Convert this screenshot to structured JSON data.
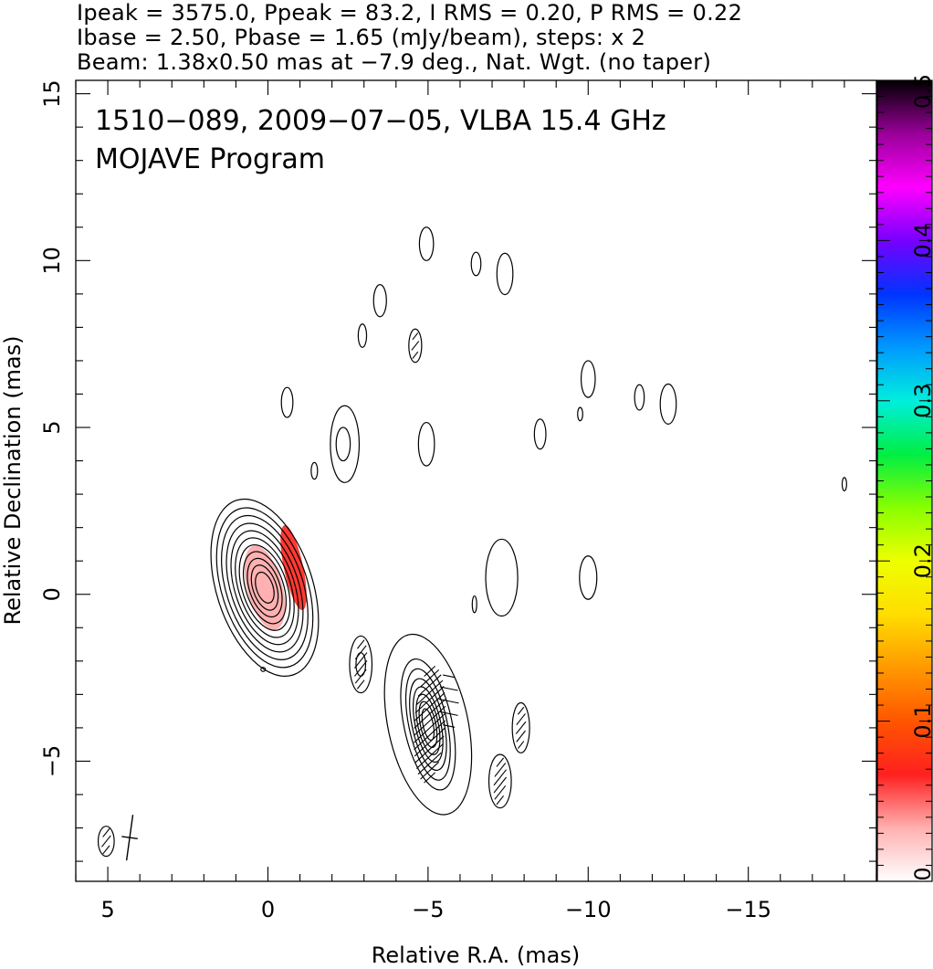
{
  "header": {
    "line1": "Ipeak = 3575.0, Ppeak = 83.2, I RMS = 0.20, P RMS = 0.22",
    "line2": "Ibase = 2.50, Pbase = 1.65 (mJy/beam), steps: x 2",
    "line3": "Beam: 1.38x0.50 mas at −7.9 deg., Nat. Wgt. (no taper)"
  },
  "chart_data": {
    "type": "contour",
    "title": "1510−089, 2009−07−05, VLBA 15.4 GHz",
    "subtitle": "MOJAVE Program",
    "xlabel": "Relative R.A. (mas)",
    "ylabel": "Relative Declination (mas)",
    "xlim": [
      6.0,
      -19.0
    ],
    "ylim": [
      -8.6,
      15.4
    ],
    "x_ticks": [
      5,
      0,
      -5,
      -10,
      -15
    ],
    "x_tick_labels": [
      "5",
      "0",
      "−5",
      "−10",
      "−15"
    ],
    "y_ticks": [
      -5,
      0,
      5,
      10,
      15
    ],
    "y_tick_labels": [
      "−5",
      "0",
      "5",
      "10",
      "15"
    ],
    "colorbar": {
      "range": [
        0,
        0.5
      ],
      "ticks": [
        0,
        0.1,
        0.2,
        0.3,
        0.4,
        0.5
      ],
      "tick_labels": [
        "0",
        "0.1",
        "0.2",
        "0.3",
        "0.4",
        "0.5"
      ],
      "colormap": "rainbow",
      "stops": [
        "#ffffff",
        "#ffb0b0",
        "#ff2020",
        "#ff5500",
        "#ff9900",
        "#ffdd00",
        "#eeff00",
        "#88ff00",
        "#00ee44",
        "#00eedd",
        "#0099ff",
        "#0033ff",
        "#7700ff",
        "#ff00ff",
        "#990099",
        "#000000"
      ]
    },
    "beam": {
      "major": 1.38,
      "minor": 0.5,
      "pa_deg": -7.9,
      "center": [
        5.0,
        -7.4
      ]
    },
    "core": {
      "center": [
        0.1,
        0.2
      ],
      "pa_deg": -18,
      "contours": [
        [
          1.5,
          2.75
        ],
        [
          1.34,
          2.48
        ],
        [
          1.2,
          2.24
        ],
        [
          1.06,
          2.0
        ],
        [
          0.93,
          1.77
        ],
        [
          0.81,
          1.55
        ],
        [
          0.7,
          1.33
        ],
        [
          0.59,
          1.12
        ],
        [
          0.48,
          0.91
        ],
        [
          0.37,
          0.7
        ],
        [
          0.26,
          0.48
        ]
      ]
    },
    "jet_knot": {
      "center": [
        -5.0,
        -3.9
      ],
      "pa_deg": -12,
      "contours": [
        [
          1.25,
          2.75
        ],
        [
          0.75,
          2.0
        ],
        [
          0.6,
          1.7
        ],
        [
          0.5,
          1.4
        ],
        [
          0.4,
          1.15
        ],
        [
          0.32,
          0.92
        ],
        [
          0.24,
          0.7
        ],
        [
          0.16,
          0.48
        ]
      ]
    },
    "polarized_regions": [
      {
        "center": [
          -0.8,
          0.8
        ],
        "rx": 0.3,
        "ry": 1.3,
        "pa_deg": -12,
        "fraction": 0.07
      },
      {
        "center": [
          0.1,
          0.2
        ],
        "rx": 0.55,
        "ry": 1.3,
        "pa_deg": -15,
        "fraction": 0.035
      }
    ],
    "isolated_contours": [
      {
        "center": [
          -4.95,
          10.5
        ],
        "rx": 0.22,
        "ry": 0.5
      },
      {
        "center": [
          -6.5,
          9.9
        ],
        "rx": 0.15,
        "ry": 0.35
      },
      {
        "center": [
          -7.4,
          9.6
        ],
        "rx": 0.25,
        "ry": 0.62
      },
      {
        "center": [
          -3.5,
          8.8
        ],
        "rx": 0.2,
        "ry": 0.48
      },
      {
        "center": [
          -2.95,
          7.75
        ],
        "rx": 0.13,
        "ry": 0.35
      },
      {
        "center": [
          -4.6,
          7.45
        ],
        "rx": 0.2,
        "ry": 0.5
      },
      {
        "center": [
          -10.0,
          6.45
        ],
        "rx": 0.22,
        "ry": 0.55
      },
      {
        "center": [
          -11.6,
          5.9
        ],
        "rx": 0.15,
        "ry": 0.38
      },
      {
        "center": [
          -12.5,
          5.7
        ],
        "rx": 0.25,
        "ry": 0.6
      },
      {
        "center": [
          -9.75,
          5.4
        ],
        "rx": 0.08,
        "ry": 0.2
      },
      {
        "center": [
          -0.6,
          5.75
        ],
        "rx": 0.18,
        "ry": 0.45
      },
      {
        "center": [
          -2.35,
          4.5
        ],
        "rx": 0.22,
        "ry": 0.5
      },
      {
        "center": [
          -2.4,
          4.5
        ],
        "rx": 0.45,
        "ry": 1.15
      },
      {
        "center": [
          -4.95,
          4.5
        ],
        "rx": 0.25,
        "ry": 0.65
      },
      {
        "center": [
          -8.5,
          4.8
        ],
        "rx": 0.18,
        "ry": 0.45
      },
      {
        "center": [
          -1.45,
          3.7
        ],
        "rx": 0.1,
        "ry": 0.25
      },
      {
        "center": [
          -18.0,
          3.3
        ],
        "rx": 0.07,
        "ry": 0.2
      },
      {
        "center": [
          -7.3,
          0.5
        ],
        "rx": 0.5,
        "ry": 1.15
      },
      {
        "center": [
          -10.0,
          0.5
        ],
        "rx": 0.27,
        "ry": 0.65
      },
      {
        "center": [
          -6.45,
          -0.3
        ],
        "rx": 0.07,
        "ry": 0.25
      },
      {
        "center": [
          -2.9,
          -2.1
        ],
        "rx": 0.35,
        "ry": 0.85
      },
      {
        "center": [
          -2.9,
          -2.1
        ],
        "rx": 0.15,
        "ry": 0.35
      },
      {
        "center": [
          -7.9,
          -4.0
        ],
        "rx": 0.27,
        "ry": 0.75
      },
      {
        "center": [
          -7.25,
          -5.6
        ],
        "rx": 0.35,
        "ry": 0.8
      },
      {
        "center": [
          5.05,
          -7.4
        ],
        "rx": 0.25,
        "ry": 0.45
      },
      {
        "center": [
          0.15,
          -2.25
        ],
        "rx": 0.07,
        "ry": 0.06
      }
    ],
    "grid": false
  }
}
